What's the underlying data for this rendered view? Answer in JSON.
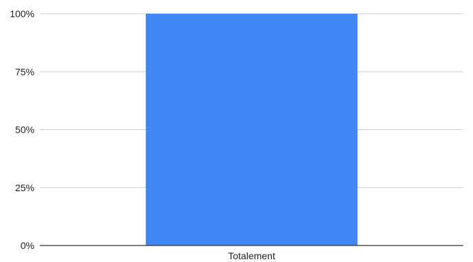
{
  "chart_data": {
    "type": "bar",
    "categories": [
      "Totalement"
    ],
    "values": [
      100
    ],
    "ylim": [
      0,
      100
    ],
    "yticks": [
      0,
      25,
      50,
      75,
      100
    ],
    "ytick_labels": [
      "0%",
      "25%",
      "50%",
      "75%",
      "100%"
    ],
    "grid": true,
    "legend": "none",
    "bar_color": "#4285F4"
  }
}
